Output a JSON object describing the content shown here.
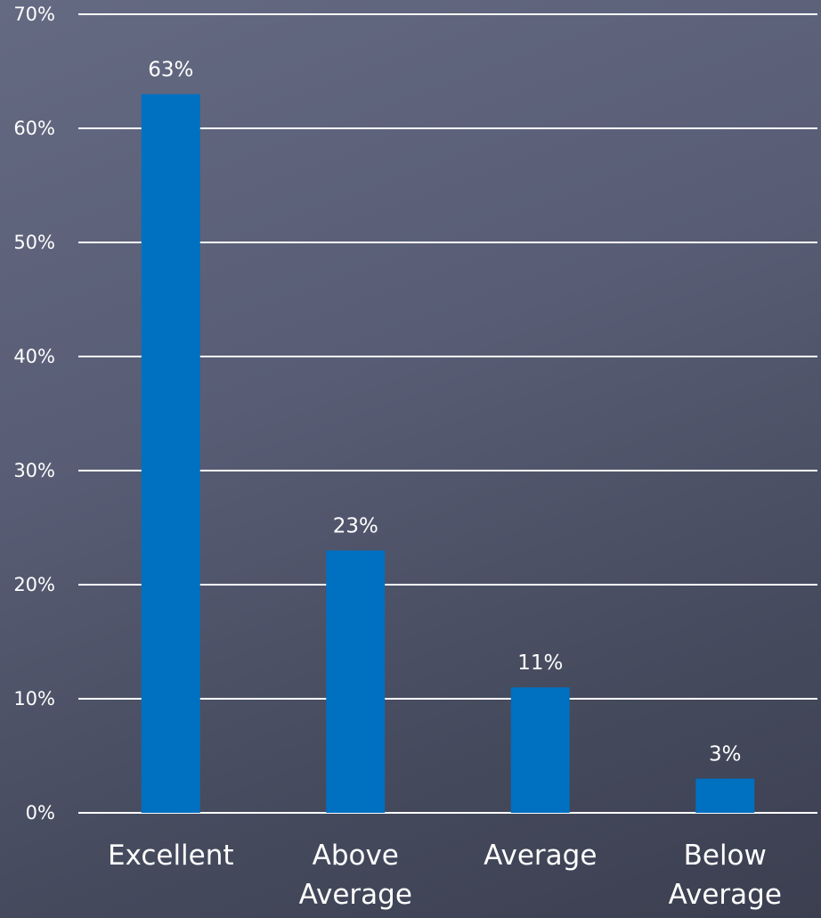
{
  "chart_data": {
    "type": "bar",
    "categories": [
      [
        "Excellent"
      ],
      [
        "Above",
        "Average"
      ],
      [
        "Average"
      ],
      [
        "Below",
        "Average"
      ]
    ],
    "values": [
      63,
      23,
      11,
      3
    ],
    "value_labels": [
      "63%",
      "23%",
      "11%",
      "3%"
    ],
    "y_ticks": [
      {
        "value": 0,
        "label": "0%"
      },
      {
        "value": 10,
        "label": "10%"
      },
      {
        "value": 20,
        "label": "20%"
      },
      {
        "value": 30,
        "label": "30%"
      },
      {
        "value": 40,
        "label": "40%"
      },
      {
        "value": 50,
        "label": "50%"
      },
      {
        "value": 60,
        "label": "60%"
      },
      {
        "value": 70,
        "label": "70%"
      }
    ],
    "ylim": [
      0,
      70
    ],
    "grid": true,
    "legend": "none",
    "title": "",
    "xlabel": "",
    "ylabel": "",
    "colors": {
      "bar": "#0070c0",
      "gridline": "#ffffff",
      "text": "#ffffff"
    }
  }
}
